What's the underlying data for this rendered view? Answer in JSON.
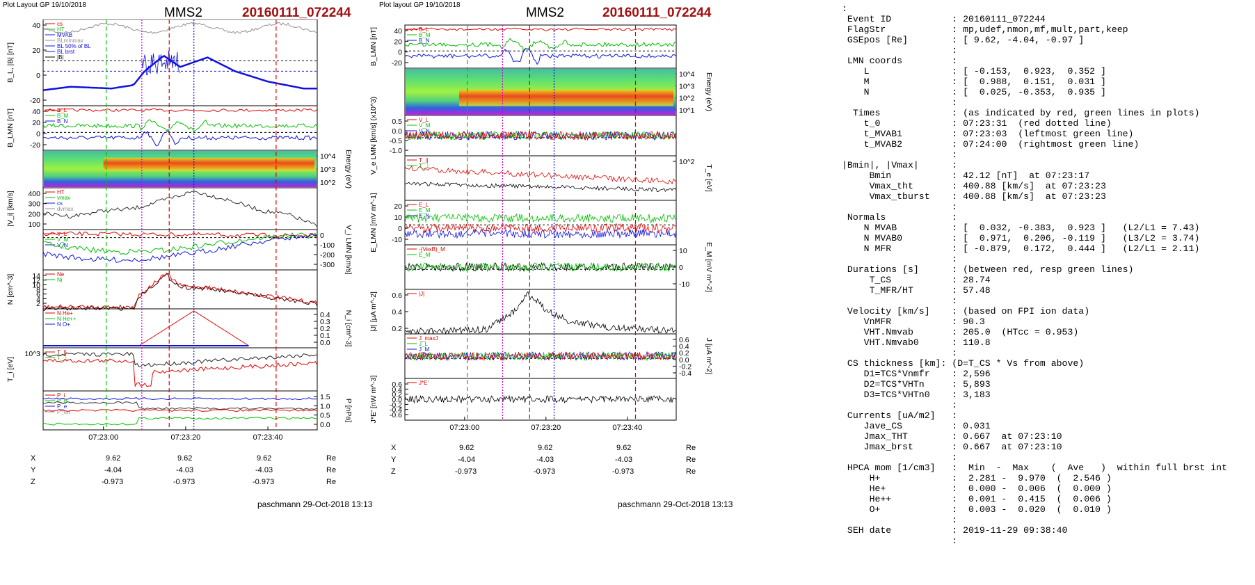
{
  "left_figure": {
    "header": "Plot Layout GP 19/10/2018",
    "title": "MMS2",
    "event": "20160111_072244",
    "time_ticks": [
      "07:23:00",
      "07:23:20",
      "07:23:40"
    ],
    "footer": "paschmann 29-Oct-2018 13:13",
    "positions": {
      "rows": [
        {
          "label": "X",
          "values": [
            "9.62",
            "9.62",
            "9.62"
          ],
          "unit": "Re"
        },
        {
          "label": "Y",
          "values": [
            "-4.04",
            "-4.03",
            "-4.03"
          ],
          "unit": "Re"
        },
        {
          "label": "Z",
          "values": [
            "-0.973",
            "-0.973",
            "-0.973"
          ],
          "unit": "Re"
        }
      ]
    },
    "panels": [
      {
        "id": "bl",
        "ylabel": "B_L, |B| [nT]",
        "yside": "left",
        "ticks": [
          "40",
          "20",
          "0",
          "-20"
        ],
        "legend": [
          "cs",
          "HT",
          "MVAB",
          "BLminmax",
          "BL 50% of BL",
          "BL brst",
          "|B|"
        ]
      },
      {
        "id": "blmn",
        "ylabel": "B_LMN [nT]",
        "yside": "left",
        "ticks": [
          "40",
          "20",
          "0",
          "-20"
        ],
        "legend": [
          "B_L",
          "B_M",
          "B_N"
        ]
      },
      {
        "id": "espec",
        "ylabel": "Energy (eV)",
        "yside": "right",
        "ticks": [
          "10^4",
          "10^3",
          "10^2"
        ],
        "legend": []
      },
      {
        "id": "vi",
        "ylabel": "|V_i| [km/s]",
        "yside": "left",
        "ticks": [
          "400",
          "300",
          "200",
          "100"
        ],
        "legend": [
          "HT",
          "vmax",
          "cs",
          "dvmax"
        ]
      },
      {
        "id": "vilmn",
        "ylabel": "V_i LMN [km/s]",
        "yside": "right",
        "ticks": [
          "0",
          "-100",
          "-200",
          "-300"
        ],
        "legend": [
          "V_L",
          "V_M",
          "V_N"
        ]
      },
      {
        "id": "n",
        "ylabel": "N [cm^-3]",
        "yside": "left",
        "ticks": [
          "14",
          "12",
          "10",
          "8",
          "6",
          "4",
          "2"
        ],
        "legend": [
          "Ne",
          "Ni"
        ]
      },
      {
        "id": "ni",
        "ylabel": "N_i [cm^-3]",
        "yside": "right",
        "ticks": [
          "0.4",
          "0.3",
          "0.2",
          "0.1",
          "0.0"
        ],
        "legend": [
          "N He+",
          "N He++",
          "N O+"
        ]
      },
      {
        "id": "ti",
        "ylabel": "T_i [eV]",
        "yside": "left",
        "ticks": [
          "10^3"
        ],
        "legend": [
          "T_||",
          "T_⊥"
        ]
      },
      {
        "id": "p",
        "ylabel": "P [nPa]",
        "yside": "right",
        "ticks": [
          "1.5",
          "1.0",
          "0.5",
          "0.0"
        ],
        "legend": [
          "P_i",
          "P_B",
          "P_e",
          "P_tot"
        ]
      }
    ]
  },
  "middle_figure": {
    "header": "Plot layout GP 19/10/2018",
    "title": "MMS2",
    "event": "20160111_072244",
    "time_ticks": [
      "07:23:00",
      "07:23:20",
      "07:23:40"
    ],
    "footer": "paschmann 29-Oct-2018 13:13",
    "positions": {
      "rows": [
        {
          "label": "X",
          "values": [
            "9.62",
            "9.62",
            "9.62"
          ],
          "unit": "Re"
        },
        {
          "label": "Y",
          "values": [
            "-4.04",
            "-4.03",
            "-4.03"
          ],
          "unit": "Re"
        },
        {
          "label": "Z",
          "values": [
            "-0.973",
            "-0.973",
            "-0.973"
          ],
          "unit": "Re"
        }
      ]
    },
    "panels": [
      {
        "id": "blmn",
        "ylabel": "B_LMN [nT]",
        "yside": "left",
        "ticks": [
          "40",
          "20",
          "0",
          "-20"
        ],
        "legend": [
          "B_L",
          "B_M",
          "B_N"
        ]
      },
      {
        "id": "espec",
        "ylabel": "Energy (eV)",
        "yside": "right",
        "ticks": [
          "10^4",
          "10^3",
          "10^2",
          "10^1"
        ],
        "legend": []
      },
      {
        "id": "ve",
        "ylabel": "V_e LMN [km/s] (x10^3)",
        "yside": "left",
        "ticks": [
          "0.5",
          "0.0",
          "-0.5",
          "-1.0"
        ],
        "legend": [
          "V_L",
          "V_M",
          "V_N"
        ]
      },
      {
        "id": "te",
        "ylabel": "T_e [eV]",
        "yside": "right",
        "ticks": [
          "10^2"
        ],
        "legend": [
          "T_||",
          "T_⊥"
        ]
      },
      {
        "id": "elmn",
        "ylabel": "E_LMN [mV m^-1]",
        "yside": "left",
        "ticks": [
          "20",
          "10",
          "0",
          "-10"
        ],
        "legend": [
          "E_L",
          "E_M",
          "E_N"
        ]
      },
      {
        "id": "em",
        "ylabel": "E_M [mV m^-2]",
        "yside": "right",
        "ticks": [
          "10",
          "0",
          "-10"
        ],
        "legend": [
          "-(VexB)_M",
          "E_M"
        ]
      },
      {
        "id": "j",
        "ylabel": "|J| [μA m^-2]",
        "yside": "left",
        "ticks": [
          "0.6",
          "0.4",
          "0.2"
        ],
        "legend": [
          "|J|"
        ]
      },
      {
        "id": "jlmn",
        "ylabel": "J [μA m^-2]",
        "yside": "right",
        "ticks": [
          "0.6",
          "0.4",
          "0.2",
          "0.0",
          "-0.2",
          "-0.4"
        ],
        "legend": [
          "J_maxJ",
          "J_L",
          "J_M",
          "J_N"
        ]
      },
      {
        "id": "je",
        "ylabel": "J*E' [nW m^-3]",
        "yside": "left",
        "ticks": [
          "0.6",
          "0.4",
          "0.2",
          "0.0",
          "-0.2",
          "-0.4",
          "-0.6"
        ],
        "legend": [
          "J*E'"
        ]
      }
    ]
  },
  "colors": {
    "red": "#e00000",
    "green": "#00c000",
    "blue": "#1010e0",
    "black": "#000000",
    "grey": "#909090",
    "magenta": "#d000d0",
    "title_red": "#a01010"
  },
  "info_panel": {
    "lines": [
      ":",
      " Event ID           : 20160111_072244",
      " FlagStr            : mp,udef,nmon,mf,mult,part,keep",
      " GSEpos [Re]        : [ 9.62, -4.04, -0.97 ]",
      "                    :",
      " LMN coords         :",
      "    L               : [ -0.153,  0.923,  0.352 ]",
      "    M               : [  0.988,  0.151,  0.031 ]",
      "    N               : [  0.025, -0.353,  0.935 ]",
      "                    :",
      "  Times             : (as indicated by red, green lines in plots)",
      "    t_0             : 07:23:31  (red dotted line)",
      "    t_MVAB1         : 07:23:03  (leftmost green line)",
      "    t_MVAB2         : 07:24:00  (rightmost green line)",
      "                    :",
      "|Bmin|, |Vmax|      :",
      "     Bmin           : 42.12 [nT]  at 07:23:17",
      "     Vmax_tht       : 400.88 [km/s]  at 07:23:23",
      "     Vmax_tburst    : 400.88 [km/s]  at 07:23:23",
      "                    :",
      " Normals            :",
      "    N MVAB          : [  0.032, -0.383,  0.923 ]   (L2/L1 = 7.43)",
      "    N MVAB0         : [  0.971,  0.206, -0.119 ]   (L3/L2 = 3.74)",
      "    N MFR           : [ -0.879,  0.172,  0.444 ]   (L2/L1 = 2.11)",
      "                    :",
      " Durations [s]      : (between red, resp green lines)",
      "     T_CS           : 28.74",
      "     T_MFR/HT       : 57.48",
      "                    :",
      " Velocity [km/s]    : (based on FPI ion data)",
      "    VnMFR           : 90.3",
      "    VHT.Nmvab       : 205.0  (HTcc = 0.953)",
      "    VHT.Nmvab0      : 110.8",
      "                    :",
      " CS thickness [km]: (D=T_CS * Vs from above)",
      "    D1=TCS*Vnmfr    : 2,596",
      "    D2=TCS*VHTn     : 5,893",
      "    D3=TCS*VHTn0    : 3,183",
      "                    :",
      " Currents [uA/m2]   :",
      "    Jave_CS         : 0.031",
      "    Jmax_THT        : 0.667  at 07:23:10",
      "    Jmax_brst       : 0.667  at 07:23:10",
      "                    :",
      " HPCA mom [1/cm3]   :  Min  -  Max    (  Ave   )  within full brst int",
      "     H+             :  2.281 -  9.970  (  2.546 )",
      "     He+            :  0.000 -  0.006  (  0.000 )",
      "     He++           :  0.001 -  0.415  (  0.006 )",
      "     O+             :  0.003 -  0.020  (  0.010 )",
      "                    :",
      " SEH date           : 2019-11-29 09:38:40",
      "                    :"
    ]
  },
  "chart_data": [
    {
      "type": "line",
      "title": "MMS2 20160111_072244 (left)",
      "x_range": [
        "07:22:44",
        "07:23:54"
      ],
      "t0": "07:23:31",
      "series": [
        {
          "name": "BL brst",
          "x": [
            "07:22:44",
            "07:22:52",
            "07:23:00",
            "07:23:04",
            "07:23:09",
            "07:23:13",
            "07:23:18",
            "07:23:25",
            "07:23:32",
            "07:23:40",
            "07:23:50",
            "07:23:54"
          ],
          "values": [
            -20,
            -18,
            -19,
            -16,
            -6,
            5,
            -3,
            2,
            -10,
            -13,
            -19,
            -19
          ]
        },
        {
          "name": "|B|",
          "x": [
            "07:22:44",
            "07:23:00",
            "07:23:20",
            "07:23:40",
            "07:23:54"
          ],
          "values": [
            45,
            46,
            47,
            46,
            45
          ]
        },
        {
          "name": "|V_i|",
          "x": [
            "07:22:44",
            "07:22:52",
            "07:23:00",
            "07:23:08",
            "07:23:14",
            "07:23:23",
            "07:23:32",
            "07:23:42",
            "07:23:54"
          ],
          "values": [
            200,
            160,
            190,
            230,
            300,
            400,
            330,
            230,
            80
          ]
        },
        {
          "name": "Ne",
          "x": [
            "07:22:44",
            "07:23:05",
            "07:23:07",
            "07:23:15",
            "07:23:20",
            "07:23:30",
            "07:23:40",
            "07:23:54"
          ],
          "values": [
            1,
            1,
            5,
            13,
            7,
            6,
            4,
            2
          ]
        },
        {
          "name": "N He++",
          "x": [
            "07:23:06",
            "07:23:23",
            "07:23:40"
          ],
          "values": [
            0.0,
            0.415,
            0.0
          ]
        }
      ]
    },
    {
      "type": "line",
      "title": "MMS2 20160111_072244 (middle)",
      "x_range": [
        "07:22:44",
        "07:23:54"
      ],
      "series": [
        {
          "name": "|J|",
          "x": [
            "07:22:44",
            "07:23:00",
            "07:23:10",
            "07:23:20",
            "07:23:30",
            "07:23:54"
          ],
          "values": [
            0.05,
            0.1,
            0.667,
            0.35,
            0.15,
            0.05
          ]
        },
        {
          "name": "T_||",
          "x": [
            "07:22:44",
            "07:23:00",
            "07:23:10",
            "07:23:30",
            "07:23:54"
          ],
          "values": [
            180,
            250,
            220,
            150,
            120
          ]
        },
        {
          "name": "T_⊥",
          "x": [
            "07:22:44",
            "07:23:00",
            "07:23:10",
            "07:23:30",
            "07:23:54"
          ],
          "values": [
            80,
            140,
            110,
            90,
            70
          ]
        }
      ]
    }
  ]
}
